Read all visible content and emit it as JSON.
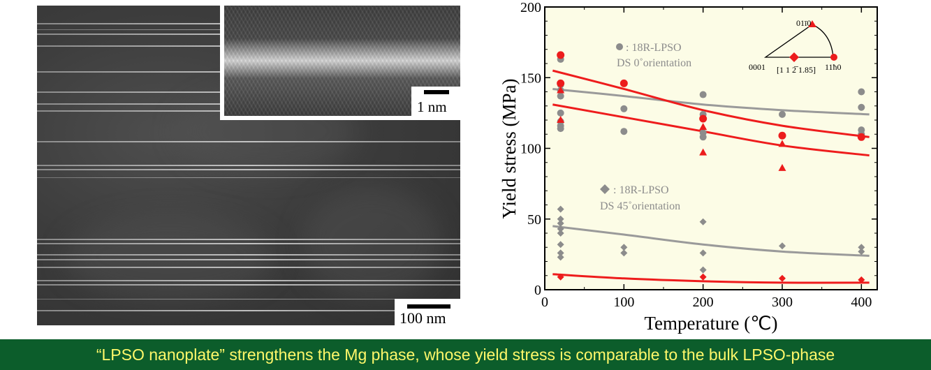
{
  "micrograph": {
    "main_scale_label": "100 nm",
    "inset_scale_label": "1 nm"
  },
  "chart_data": {
    "type": "scatter",
    "xlabel": "Temperature (℃)",
    "ylabel": "Yield stress (MPa)",
    "xlim": [
      0,
      420
    ],
    "ylim": [
      0,
      200
    ],
    "xticks": [
      0,
      100,
      200,
      300,
      400
    ],
    "yticks": [
      0,
      50,
      100,
      150,
      200
    ],
    "background": "#fcfce6",
    "grid": false,
    "legend_0deg": {
      "label": ": 18R-LPSO",
      "sublabel": "DS 0˚orientation"
    },
    "legend_45deg": {
      "label": ": 18R-LPSO",
      "sublabel": "DS 45˚orientation"
    },
    "triangle_labels": {
      "top": "01ī0",
      "left": "0001",
      "right": "11ħ0",
      "bottom": "[1 1 2̅ 1.85]"
    },
    "colors": {
      "gray": "#8c8c8c",
      "red": "#ec1c1c",
      "gray_line": "#9a9a9a",
      "red_line": "#ee1c1c"
    },
    "series": [
      {
        "marker": "circle",
        "color": "gray",
        "points": [
          [
            20,
            163
          ],
          [
            20,
            145
          ],
          [
            20,
            141
          ],
          [
            20,
            137
          ],
          [
            20,
            125
          ],
          [
            20,
            119
          ],
          [
            20,
            116
          ],
          [
            20,
            114
          ],
          [
            100,
            128
          ],
          [
            100,
            112
          ],
          [
            200,
            138
          ],
          [
            200,
            124
          ],
          [
            200,
            111
          ],
          [
            200,
            108
          ],
          [
            300,
            124
          ],
          [
            300,
            109
          ],
          [
            400,
            140
          ],
          [
            400,
            129
          ],
          [
            400,
            113
          ],
          [
            400,
            110
          ]
        ]
      },
      {
        "marker": "circle",
        "color": "red",
        "points": [
          [
            20,
            166
          ],
          [
            20,
            146
          ],
          [
            100,
            146
          ],
          [
            200,
            121
          ],
          [
            300,
            109
          ],
          [
            400,
            108
          ]
        ]
      },
      {
        "marker": "triangle",
        "color": "red",
        "points": [
          [
            20,
            141
          ],
          [
            20,
            120
          ],
          [
            200,
            115
          ],
          [
            200,
            97
          ],
          [
            300,
            103
          ],
          [
            300,
            86
          ]
        ]
      },
      {
        "marker": "diamond",
        "color": "gray",
        "points": [
          [
            20,
            57
          ],
          [
            20,
            50
          ],
          [
            20,
            47
          ],
          [
            20,
            43
          ],
          [
            20,
            40
          ],
          [
            20,
            32
          ],
          [
            20,
            26
          ],
          [
            20,
            23
          ],
          [
            100,
            30
          ],
          [
            100,
            26
          ],
          [
            200,
            48
          ],
          [
            200,
            26
          ],
          [
            200,
            14
          ],
          [
            300,
            31
          ],
          [
            400,
            30
          ],
          [
            400,
            27
          ]
        ]
      },
      {
        "marker": "diamond",
        "color": "red",
        "points": [
          [
            20,
            9
          ],
          [
            200,
            9
          ],
          [
            300,
            8
          ],
          [
            400,
            7
          ]
        ]
      }
    ],
    "fit_curves": [
      {
        "color": "gray_line",
        "points": [
          [
            10,
            142
          ],
          [
            100,
            137
          ],
          [
            200,
            131
          ],
          [
            300,
            127
          ],
          [
            410,
            124
          ]
        ]
      },
      {
        "color": "red_line",
        "points": [
          [
            10,
            155
          ],
          [
            100,
            142
          ],
          [
            200,
            127
          ],
          [
            300,
            116
          ],
          [
            410,
            108
          ]
        ]
      },
      {
        "color": "red_line",
        "points": [
          [
            10,
            131
          ],
          [
            100,
            122
          ],
          [
            200,
            112
          ],
          [
            300,
            102
          ],
          [
            410,
            95
          ]
        ]
      },
      {
        "color": "gray_line",
        "points": [
          [
            10,
            45
          ],
          [
            100,
            39
          ],
          [
            200,
            32
          ],
          [
            300,
            27
          ],
          [
            410,
            24
          ]
        ]
      },
      {
        "color": "red_line",
        "points": [
          [
            10,
            11
          ],
          [
            100,
            8
          ],
          [
            200,
            6
          ],
          [
            300,
            5
          ],
          [
            410,
            5
          ]
        ]
      }
    ]
  },
  "caption": "“LPSO nanoplate” strengthens the Mg phase, whose yield stress is comparable to the bulk LPSO-phase"
}
